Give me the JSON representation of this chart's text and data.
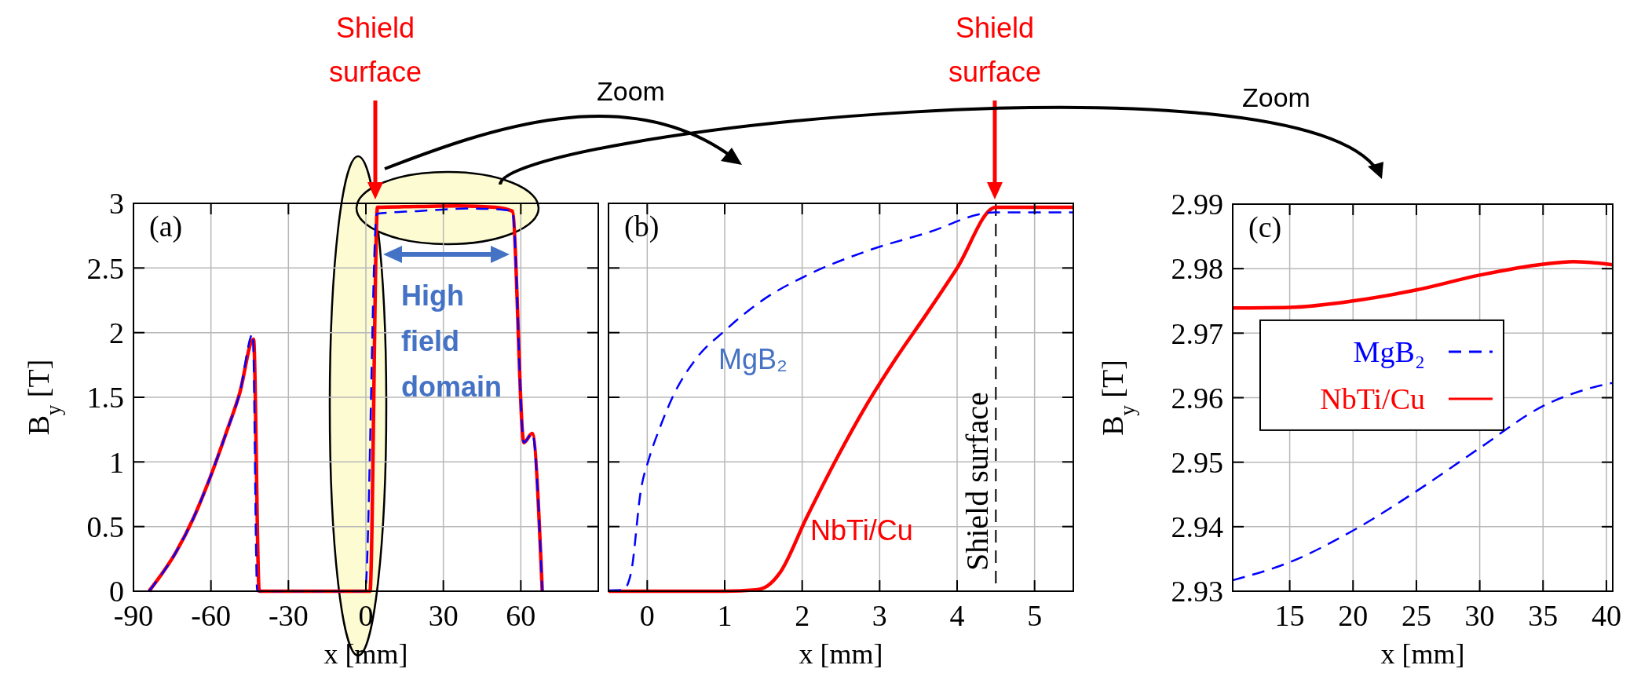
{
  "chart_data": [
    {
      "type": "line",
      "xlabel": "x [mm]",
      "ylabel": "B$_{y}$ [T]",
      "xlim": [
        -90,
        90
      ],
      "ylim": [
        0,
        3
      ],
      "xticks": [
        -90,
        -60,
        -30,
        0,
        30,
        60
      ],
      "yticks": [
        0,
        0.5,
        1,
        1.5,
        2,
        2.5,
        3
      ],
      "grid": true,
      "annotations": [
        "(a)",
        "Shield surface",
        "High field domain"
      ],
      "series": [
        {
          "color": "#0000ff",
          "line_style": "dashed",
          "x": [
            -84,
            -73.3,
            -66.9,
            -60.5,
            -54,
            -48.9,
            -43.8,
            -42.1,
            -0.3,
            4.2,
            20,
            40,
            50,
            56.7,
            61.2,
            64.4,
            68.3
          ],
          "values": [
            0,
            0.31,
            0.56,
            0.87,
            1.23,
            1.53,
            1.99,
            0,
            0,
            2.92,
            2.94,
            2.96,
            2.955,
            2.94,
            1.15,
            1.22,
            0
          ]
        },
        {
          "color": "#ff0000",
          "line_style": "solid",
          "x": [
            -84,
            -73.3,
            -66.9,
            -60.5,
            -54,
            -48.9,
            -43.5,
            -41.3,
            1.6,
            4.5,
            20,
            35.6,
            50,
            56.7,
            61.2,
            64.4,
            68.3
          ],
          "values": [
            0,
            0.31,
            0.56,
            0.87,
            1.23,
            1.53,
            1.95,
            0,
            0,
            2.97,
            2.975,
            2.98,
            2.97,
            2.94,
            1.15,
            1.22,
            0
          ]
        }
      ]
    },
    {
      "type": "line",
      "xlabel": "x [mm]",
      "xlim": [
        -0.5,
        5.5
      ],
      "ylim": [
        0,
        3
      ],
      "xticks": [
        0,
        1,
        2,
        3,
        4,
        5
      ],
      "yticks": [
        0,
        0.5,
        1,
        1.5,
        2,
        2.5,
        3
      ],
      "grid": true,
      "tick_labels": "x",
      "annotations": [
        "(b)",
        "Shield surface",
        "MgB₂",
        "NbTi/Cu",
        "Zoom"
      ],
      "ref_lines": [
        {
          "axis": "x",
          "value": 4.5,
          "label": "Shield surface",
          "color": "#000000",
          "line_style": "dashed"
        }
      ],
      "series": [
        {
          "color": "#0000ff",
          "line_style": "dashed",
          "x": [
            -0.5,
            -0.31,
            -0.21,
            -0.08,
            0.02,
            0.16,
            0.35,
            0.62,
            1.01,
            1.51,
            2.05,
            2.83,
            3.6,
            4.48,
            5.5
          ],
          "values": [
            0.005,
            0.01,
            0.14,
            0.79,
            1.02,
            1.26,
            1.53,
            1.79,
            2.02,
            2.26,
            2.44,
            2.63,
            2.77,
            2.93,
            2.93
          ]
        },
        {
          "color": "#ff0000",
          "line_style": "solid",
          "x": [
            -0.5,
            1.01,
            1.4,
            1.55,
            1.71,
            2.05,
            2.44,
            2.83,
            3.22,
            3.6,
            3.99,
            4.5,
            5.5
          ],
          "values": [
            0,
            0,
            0.01,
            0.04,
            0.14,
            0.56,
            1.02,
            1.44,
            1.81,
            2.14,
            2.49,
            2.97,
            2.97
          ]
        }
      ]
    },
    {
      "type": "line",
      "xlabel": "x [mm]",
      "ylabel": "B$_{y}$ [T]",
      "xlim": [
        10.5,
        40.5
      ],
      "ylim": [
        2.93,
        2.99
      ],
      "xticks": [
        15,
        20,
        25,
        30,
        35,
        40
      ],
      "yticks": [
        2.93,
        2.94,
        2.95,
        2.96,
        2.97,
        2.98,
        2.99
      ],
      "grid": true,
      "legend": "left",
      "annotations": [
        "(c)",
        "Zoom"
      ],
      "series": [
        {
          "name": "MgB₂",
          "color": "#0000ff",
          "line_style": "dashed",
          "x": [
            10.5,
            15,
            20,
            25,
            30,
            35,
            38.4,
            40.5
          ],
          "values": [
            2.9317,
            2.9345,
            2.9394,
            2.9455,
            2.9522,
            2.9587,
            2.9613,
            2.9623
          ]
        },
        {
          "name": "NbTi/Cu",
          "color": "#ff0000",
          "line_style": "solid",
          "x": [
            10.5,
            15,
            20,
            25,
            30,
            35,
            37.4,
            40.5
          ],
          "values": [
            2.9739,
            2.974,
            2.975,
            2.9767,
            2.979,
            2.9807,
            2.9811,
            2.9806
          ]
        }
      ]
    }
  ]
}
